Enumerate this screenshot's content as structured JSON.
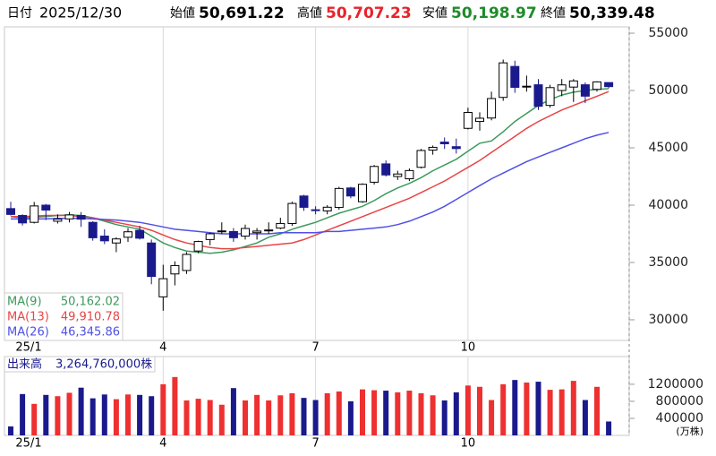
{
  "chart_data": {
    "type": "candlestick",
    "header": {
      "date_label": "日付",
      "date": "2025/12/30",
      "fields": [
        {
          "label": "始値",
          "value": "50,691.22",
          "color": "#000000"
        },
        {
          "label": "高値",
          "value": "50,707.23",
          "color": "#e8232a"
        },
        {
          "label": "安値",
          "value": "50,198.97",
          "color": "#1e8c28"
        },
        {
          "label": "終値",
          "value": "50,339.48",
          "color": "#000000"
        }
      ]
    },
    "categories": [
      "25/1",
      null,
      null,
      null,
      null,
      null,
      null,
      null,
      null,
      null,
      null,
      null,
      null,
      "4",
      null,
      null,
      null,
      null,
      null,
      null,
      null,
      null,
      null,
      null,
      null,
      null,
      "7",
      null,
      null,
      null,
      null,
      null,
      null,
      null,
      null,
      null,
      null,
      null,
      null,
      "10",
      null,
      null,
      null,
      null,
      null,
      null,
      null,
      null,
      null,
      null,
      null,
      null
    ],
    "open": [
      39700,
      39100,
      38500,
      40000,
      38600,
      38800,
      39100,
      38500,
      37300,
      36700,
      37200,
      37800,
      36700,
      32000,
      34000,
      34300,
      36000,
      37000,
      37700,
      37700,
      37300,
      37600,
      37800,
      38000,
      38400,
      40800,
      39600,
      39500,
      39800,
      41500,
      40300,
      42000,
      43600,
      42500,
      42300,
      43300,
      44800,
      45500,
      45100,
      46700,
      47300,
      47600,
      49400,
      52100,
      50300,
      50500,
      48700,
      50000,
      50300,
      50500,
      50100,
      50691.22
    ],
    "high": [
      40290,
      39200,
      40280,
      40100,
      39200,
      39400,
      39400,
      38600,
      37900,
      37200,
      38000,
      38200,
      37000,
      34800,
      35100,
      35900,
      36900,
      37600,
      38500,
      38000,
      38300,
      38000,
      38500,
      38900,
      40300,
      40900,
      39900,
      40000,
      41600,
      41600,
      41900,
      43500,
      43900,
      43000,
      43200,
      44900,
      45200,
      45900,
      45800,
      48500,
      48100,
      49900,
      52700,
      52600,
      51300,
      51000,
      50500,
      51000,
      51000,
      50700,
      50800,
      50707.23
    ],
    "low": [
      39100,
      38220,
      38400,
      38700,
      38400,
      38500,
      38100,
      36900,
      36600,
      35900,
      36800,
      37000,
      33100,
      30790,
      33000,
      34000,
      35800,
      36500,
      37500,
      36800,
      37000,
      37000,
      37500,
      37900,
      38200,
      39500,
      39200,
      39200,
      39600,
      40600,
      40200,
      41800,
      42500,
      42200,
      42100,
      43200,
      44400,
      44900,
      44500,
      46600,
      46500,
      47400,
      49100,
      49800,
      49900,
      48300,
      48500,
      49500,
      49000,
      48900,
      49900,
      50198.97
    ],
    "close": [
      39190,
      38451,
      39931,
      39572,
      38787,
      39149,
      38776,
      37155,
      36887,
      37053,
      37677,
      37120,
      33780,
      33585,
      34730,
      35705,
      36830,
      37503,
      37753,
      37160,
      37965,
      37741,
      37834,
      38403,
      40150,
      39811,
      39570,
      39819,
      41456,
      40799,
      41820,
      43378,
      42633,
      42718,
      43018,
      44768,
      45045,
      45354,
      44936,
      48088,
      47582,
      49299,
      52411,
      50276,
      50376,
      48625,
      50253,
      50491,
      50836,
      49507,
      50750,
      50339.48
    ],
    "up_color": "#ffffff",
    "down_color": "#1a1a8c",
    "ylim": [
      28200,
      55550
    ],
    "yticks": [
      30000,
      35000,
      40000,
      45000,
      50000,
      55000
    ],
    "moving_averages": [
      {
        "name": "MA(9)",
        "color": "#3c9a5c",
        "last_value_label": "50,162.02",
        "values": [
          39000,
          38900,
          38950,
          39000,
          39100,
          39150,
          39100,
          38900,
          38600,
          38300,
          38100,
          37900,
          37300,
          36700,
          36300,
          36000,
          35900,
          35800,
          35900,
          36100,
          36400,
          36700,
          37200,
          37500,
          37900,
          38200,
          38500,
          38900,
          39300,
          39600,
          39900,
          40400,
          41000,
          41500,
          41900,
          42400,
          43000,
          43500,
          44000,
          44700,
          45400,
          45600,
          46400,
          47300,
          48000,
          48700,
          49200,
          49600,
          49850,
          50000,
          50100,
          50162.02
        ]
      },
      {
        "name": "MA(13)",
        "color": "#e84545",
        "last_value_label": "49,910.78",
        "values": [
          39000,
          39000,
          39050,
          39100,
          39100,
          39100,
          39000,
          38900,
          38700,
          38500,
          38300,
          38100,
          37800,
          37400,
          37000,
          36700,
          36500,
          36300,
          36200,
          36200,
          36300,
          36400,
          36500,
          36600,
          36700,
          37000,
          37400,
          37800,
          38200,
          38600,
          39000,
          39400,
          39800,
          40200,
          40600,
          41100,
          41600,
          42100,
          42700,
          43300,
          43900,
          44600,
          45300,
          46000,
          46700,
          47300,
          47800,
          48300,
          48700,
          49100,
          49500,
          49910.78
        ]
      },
      {
        "name": "MA(26)",
        "color": "#5050e6",
        "last_value_label": "46,345.86",
        "values": [
          38800,
          38800,
          38800,
          38800,
          38850,
          38850,
          38850,
          38800,
          38750,
          38700,
          38600,
          38500,
          38300,
          38100,
          37900,
          37800,
          37700,
          37600,
          37500,
          37500,
          37500,
          37500,
          37500,
          37600,
          37600,
          37600,
          37600,
          37700,
          37700,
          37800,
          37900,
          38000,
          38100,
          38300,
          38600,
          39000,
          39400,
          39900,
          40500,
          41100,
          41700,
          42300,
          42800,
          43300,
          43800,
          44200,
          44600,
          45000,
          45400,
          45800,
          46100,
          46345.86
        ]
      }
    ],
    "volume": {
      "title": "出来高",
      "value_label": "3,264,760,000株",
      "unit": "(万株)",
      "up_color": "#ee3030",
      "down_color": "#1a1a8c",
      "ylim": [
        0,
        1850000
      ],
      "yticks": [
        400000,
        800000,
        1200000
      ],
      "values": [
        210000,
        970000,
        740000,
        950000,
        920000,
        1000000,
        1120000,
        870000,
        960000,
        850000,
        960000,
        950000,
        920000,
        1200000,
        1370000,
        820000,
        860000,
        830000,
        720000,
        1110000,
        820000,
        950000,
        820000,
        940000,
        990000,
        880000,
        830000,
        990000,
        1030000,
        800000,
        1080000,
        1060000,
        1050000,
        1010000,
        1050000,
        990000,
        940000,
        820000,
        1010000,
        1170000,
        1140000,
        830000,
        1200000,
        1300000,
        1240000,
        1260000,
        1070000,
        1080000,
        1280000,
        830000,
        1140000,
        326476
      ]
    }
  }
}
